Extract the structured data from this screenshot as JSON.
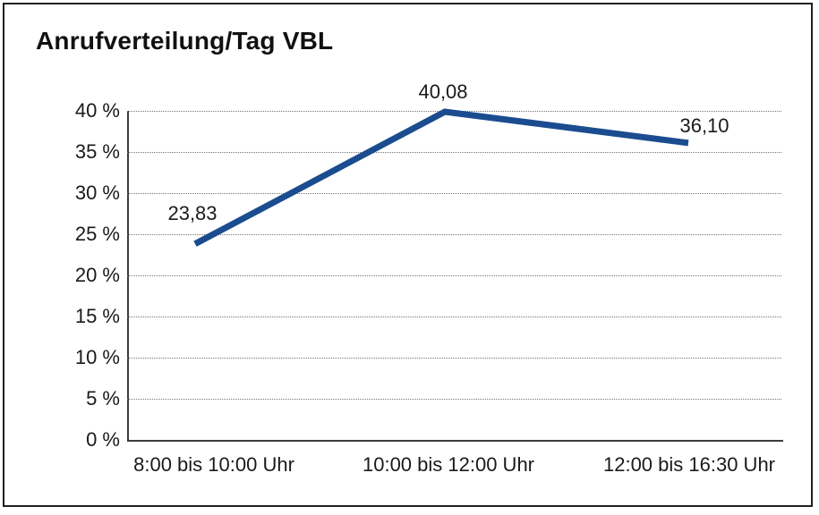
{
  "chart_data": {
    "type": "line",
    "title": "Anrufverteilung/Tag VBL",
    "categories": [
      "8:00 bis 10:00 Uhr",
      "10:00 bis 12:00 Uhr",
      "12:00 bis 16:30 Uhr"
    ],
    "values": [
      23.83,
      40.08,
      36.1
    ],
    "data_labels": [
      "23,83",
      "40,08",
      "36,10"
    ],
    "y_ticks": [
      "40 %",
      "35 %",
      "30 %",
      "25 %",
      "20 %",
      "15 %",
      "10 %",
      "5 %",
      "0 %"
    ],
    "ylim": [
      0,
      40
    ],
    "y_step_percent": 5,
    "xlabel": "",
    "ylabel": "",
    "grid": "horizontal-dotted",
    "legend": "none",
    "line_color": "#1a4c8f",
    "text_color": "#1a1a1a",
    "axis_color": "#3c3c3c",
    "frame_color": "#1f1f1f"
  }
}
